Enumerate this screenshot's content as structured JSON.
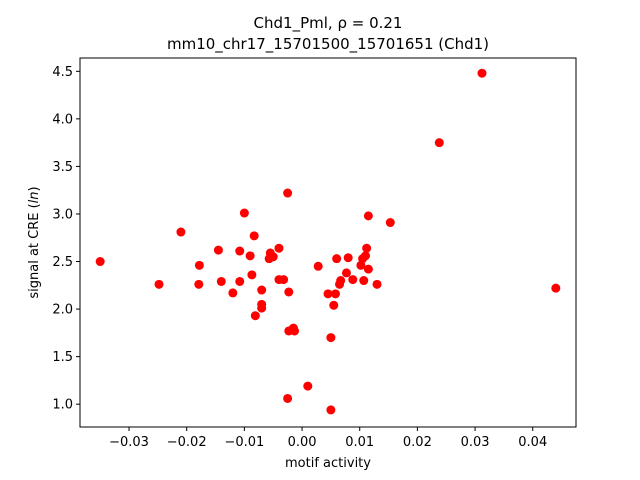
{
  "chart_data": {
    "type": "scatter",
    "title_line1": "Chd1_Pml, ρ = 0.21",
    "title_line2": "mm10_chr17_15701500_15701651 (Chd1)",
    "xlabel": "motif activity",
    "ylabel_prefix": "signal at CRE (",
    "ylabel_italic": "ln",
    "ylabel_suffix": ")",
    "xlim": [
      -0.0385,
      0.0475
    ],
    "ylim": [
      0.76,
      4.64
    ],
    "xticks": [
      -0.03,
      -0.02,
      -0.01,
      0.0,
      0.01,
      0.02,
      0.03,
      0.04
    ],
    "xtick_labels": [
      "−0.03",
      "−0.02",
      "−0.01",
      "0.00",
      "0.01",
      "0.02",
      "0.03",
      "0.04"
    ],
    "yticks": [
      1.0,
      1.5,
      2.0,
      2.5,
      3.0,
      3.5,
      4.0,
      4.5
    ],
    "ytick_labels": [
      "1.0",
      "1.5",
      "2.0",
      "2.5",
      "3.0",
      "3.5",
      "4.0",
      "4.5"
    ],
    "marker_color": "#ff0000",
    "grid": false,
    "points": [
      {
        "x": -0.035,
        "y": 2.5
      },
      {
        "x": -0.0248,
        "y": 2.26
      },
      {
        "x": -0.021,
        "y": 2.81
      },
      {
        "x": -0.0178,
        "y": 2.46
      },
      {
        "x": -0.0179,
        "y": 2.26
      },
      {
        "x": -0.0145,
        "y": 2.62
      },
      {
        "x": -0.014,
        "y": 2.29
      },
      {
        "x": -0.012,
        "y": 2.17
      },
      {
        "x": -0.0108,
        "y": 2.61
      },
      {
        "x": -0.0108,
        "y": 2.29
      },
      {
        "x": -0.01,
        "y": 3.01
      },
      {
        "x": -0.009,
        "y": 2.56
      },
      {
        "x": -0.0087,
        "y": 2.36
      },
      {
        "x": -0.0083,
        "y": 2.77
      },
      {
        "x": -0.0081,
        "y": 1.93
      },
      {
        "x": -0.007,
        "y": 2.2
      },
      {
        "x": -0.007,
        "y": 2.05
      },
      {
        "x": -0.007,
        "y": 2.01
      },
      {
        "x": -0.0057,
        "y": 2.53
      },
      {
        "x": -0.0055,
        "y": 2.59
      },
      {
        "x": -0.005,
        "y": 2.55
      },
      {
        "x": -0.004,
        "y": 2.64
      },
      {
        "x": -0.004,
        "y": 2.31
      },
      {
        "x": -0.0032,
        "y": 2.31
      },
      {
        "x": -0.0025,
        "y": 3.22
      },
      {
        "x": -0.0023,
        "y": 2.18
      },
      {
        "x": -0.0023,
        "y": 1.77
      },
      {
        "x": -0.0015,
        "y": 1.8
      },
      {
        "x": -0.0013,
        "y": 1.77
      },
      {
        "x": -0.0025,
        "y": 1.06
      },
      {
        "x": 0.001,
        "y": 1.19
      },
      {
        "x": 0.0028,
        "y": 2.45
      },
      {
        "x": 0.0045,
        "y": 2.16
      },
      {
        "x": 0.005,
        "y": 1.7
      },
      {
        "x": 0.005,
        "y": 0.94
      },
      {
        "x": 0.0055,
        "y": 2.04
      },
      {
        "x": 0.0058,
        "y": 2.16
      },
      {
        "x": 0.006,
        "y": 2.53
      },
      {
        "x": 0.0065,
        "y": 2.26
      },
      {
        "x": 0.0067,
        "y": 2.3
      },
      {
        "x": 0.0077,
        "y": 2.38
      },
      {
        "x": 0.008,
        "y": 2.54
      },
      {
        "x": 0.0088,
        "y": 2.31
      },
      {
        "x": 0.0102,
        "y": 2.46
      },
      {
        "x": 0.0105,
        "y": 2.53
      },
      {
        "x": 0.0107,
        "y": 2.3
      },
      {
        "x": 0.011,
        "y": 2.56
      },
      {
        "x": 0.0112,
        "y": 2.64
      },
      {
        "x": 0.0115,
        "y": 2.42
      },
      {
        "x": 0.0115,
        "y": 2.98
      },
      {
        "x": 0.013,
        "y": 2.26
      },
      {
        "x": 0.0153,
        "y": 2.91
      },
      {
        "x": 0.0238,
        "y": 3.75
      },
      {
        "x": 0.0312,
        "y": 4.48
      },
      {
        "x": 0.044,
        "y": 2.22
      }
    ]
  }
}
